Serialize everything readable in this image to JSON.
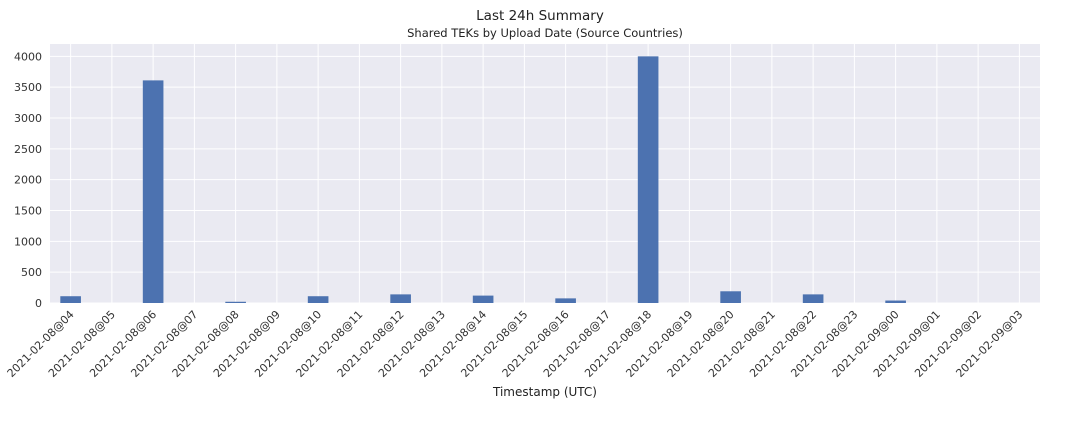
{
  "chart_data": {
    "type": "bar",
    "title": "Last 24h Summary",
    "subtitle": "Shared TEKs by Upload Date (Source Countries)",
    "xlabel": "Timestamp (UTC)",
    "ylabel": "",
    "ylim": [
      0,
      4200
    ],
    "yticks": [
      0,
      500,
      1000,
      1500,
      2000,
      2500,
      3000,
      3500,
      4000
    ],
    "grid": true,
    "categories": [
      "2021-02-08@04",
      "2021-02-08@05",
      "2021-02-08@06",
      "2021-02-08@07",
      "2021-02-08@08",
      "2021-02-08@09",
      "2021-02-08@10",
      "2021-02-08@11",
      "2021-02-08@12",
      "2021-02-08@13",
      "2021-02-08@14",
      "2021-02-08@15",
      "2021-02-08@16",
      "2021-02-08@17",
      "2021-02-08@18",
      "2021-02-08@19",
      "2021-02-08@20",
      "2021-02-08@21",
      "2021-02-08@22",
      "2021-02-08@23",
      "2021-02-09@00",
      "2021-02-09@01",
      "2021-02-09@02",
      "2021-02-09@03"
    ],
    "values": [
      110,
      0,
      3610,
      0,
      20,
      0,
      110,
      0,
      140,
      0,
      120,
      0,
      75,
      0,
      4000,
      0,
      190,
      0,
      140,
      0,
      40,
      0,
      0,
      0
    ],
    "colors": {
      "bar": "#4c72b0",
      "plot_bg": "#eaeaf2",
      "grid": "#ffffff"
    }
  }
}
